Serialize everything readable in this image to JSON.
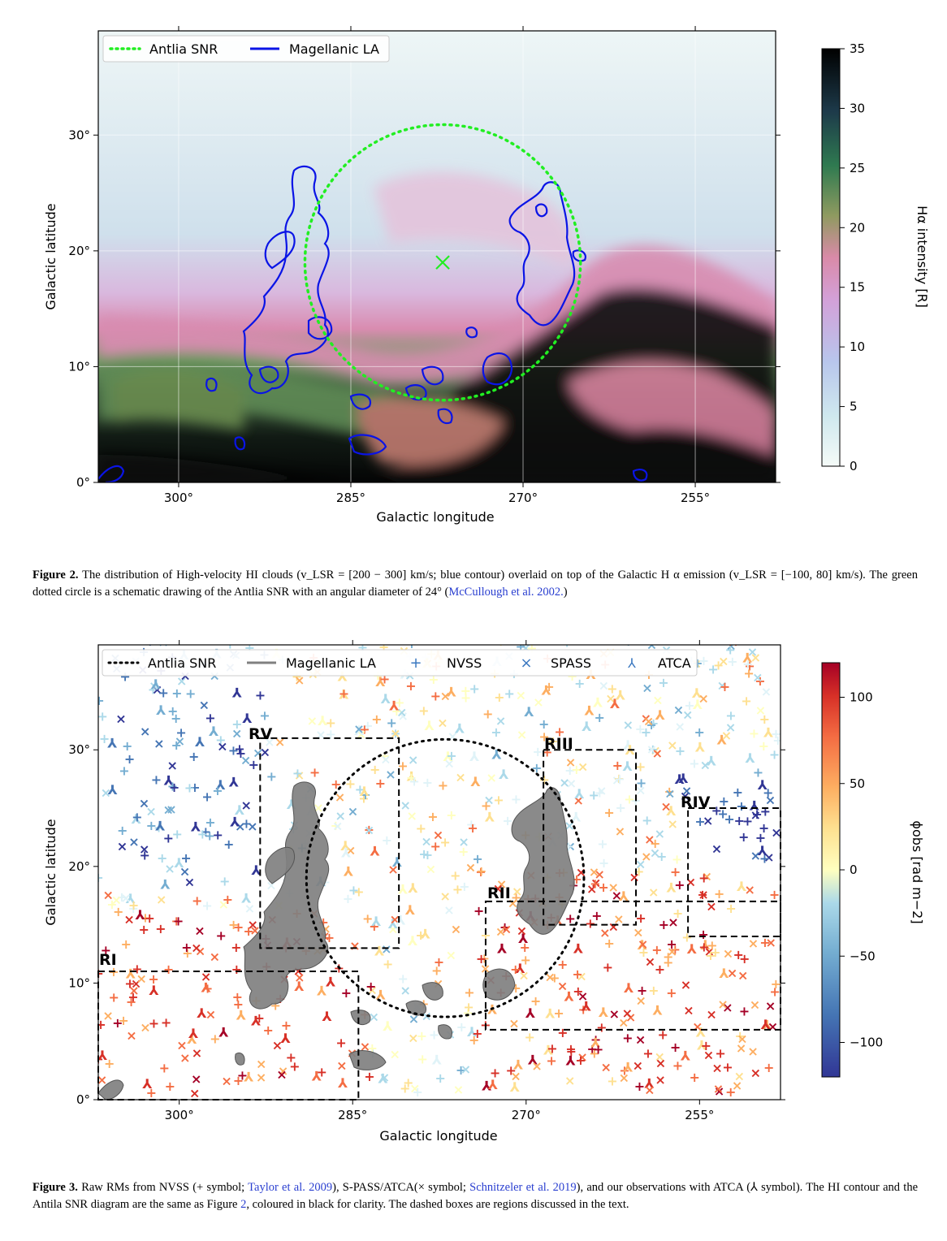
{
  "figure2": {
    "legend": [
      "Antlia SNR",
      "Magellanic LA"
    ],
    "xlabel": "Galactic longitude",
    "ylabel": "Galactic latitude",
    "xticks": [
      "300°",
      "285°",
      "270°",
      "255°"
    ],
    "yticks": [
      "0°",
      "10°",
      "20°",
      "30°"
    ],
    "colorbar_label": "Hα intensity [R]",
    "colorbar_ticks": [
      "0",
      "5",
      "10",
      "15",
      "20",
      "25",
      "30",
      "35"
    ],
    "caption_label": "Figure 2.",
    "caption_text": "The distribution of High-velocity HI clouds (v_LSR = [200 − 300] km/s; blue contour) overlaid on top of the Galactic H α emission (v_LSR = [−100, 80] km/s). The green dotted circle is a schematic drawing of the Antlia SNR with an angular diameter of 24° (",
    "caption_ref": "McCullough et al. 2002.",
    "caption_end": ")"
  },
  "figure3": {
    "legend": [
      "Antlia SNR",
      "Magellanic LA",
      "NVSS",
      "SPASS",
      "ATCA"
    ],
    "xlabel": "Galactic longitude",
    "ylabel": "Galactic latitude",
    "xticks": [
      "300°",
      "285°",
      "270°",
      "255°"
    ],
    "yticks": [
      "0°",
      "10°",
      "20°",
      "30°"
    ],
    "colorbar_label": "ϕobs [rad m−2]",
    "colorbar_ticks": [
      "100",
      "50",
      "0",
      "−50",
      "−100"
    ],
    "regions": [
      "RI",
      "RII",
      "RIII",
      "RIV",
      "RV"
    ],
    "caption_label": "Figure 3.",
    "caption_a": "Raw RMs from NVSS (+ symbol; ",
    "caption_ref1": "Taylor et al. 2009",
    "caption_b": "), S-PASS/ATCA(× symbol; ",
    "caption_ref2": "Schnitzeler et al. 2019",
    "caption_c": "), and our observations with ATCA (⅄ symbol). The HI contour and the Antila SNR diagram are the same as Figure ",
    "caption_ref3": "2",
    "caption_d": ", coloured in black for clarity. The dashed boxes are regions discussed in the text."
  },
  "chart_data": [
    {
      "type": "heatmap",
      "xlabel": "Galactic longitude",
      "ylabel": "Galactic latitude",
      "xlim": [
        307,
        248
      ],
      "ylim": [
        0,
        39
      ],
      "x_ticks": [
        300,
        285,
        270,
        255
      ],
      "y_ticks": [
        0,
        10,
        20,
        30
      ],
      "grid": true,
      "legend_placement": "top-left",
      "colorbar": {
        "label": "Hα intensity [R]",
        "range": [
          0,
          35
        ]
      },
      "snr_circle": {
        "center_l": 277,
        "center_b": 19,
        "diameter_deg": 24
      },
      "snr_center_marker": {
        "l": 277,
        "b": 19
      }
    },
    {
      "type": "scatter",
      "xlabel": "Galactic longitude",
      "ylabel": "Galactic latitude",
      "xlim": [
        307,
        248
      ],
      "ylim": [
        0,
        39
      ],
      "x_ticks": [
        300,
        285,
        270,
        255
      ],
      "y_ticks": [
        0,
        10,
        20,
        30
      ],
      "legend_placement": "top",
      "colorbar": {
        "label": "ϕobs [rad m−2]",
        "range": [
          -120,
          120
        ]
      },
      "series": [
        {
          "name": "NVSS"
        },
        {
          "name": "SPASS"
        },
        {
          "name": "ATCA"
        }
      ],
      "regions": [
        {
          "name": "RI",
          "l": [
            307,
            284.5
          ],
          "b": [
            0,
            11
          ]
        },
        {
          "name": "RII",
          "l": [
            273.5,
            248
          ],
          "b": [
            6,
            17
          ]
        },
        {
          "name": "RIII",
          "l": [
            268.5,
            260.5
          ],
          "b": [
            15,
            30
          ]
        },
        {
          "name": "RIV",
          "l": [
            256,
            248
          ],
          "b": [
            14,
            25
          ]
        },
        {
          "name": "RV",
          "l": [
            293,
            281
          ],
          "b": [
            13,
            31
          ]
        }
      ]
    }
  ]
}
